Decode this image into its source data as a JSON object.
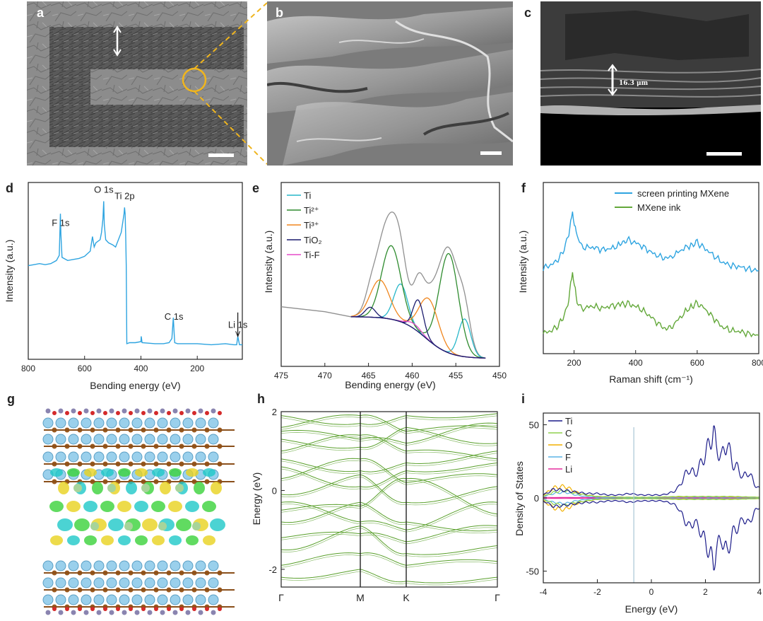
{
  "panel_labels": {
    "a": "a",
    "b": "b",
    "c": "c",
    "d": "d",
    "e": "e",
    "f": "f",
    "g": "g",
    "h": "h",
    "i": "i"
  },
  "sem": {
    "c_thickness": "16.3 μm"
  },
  "colors": {
    "blue": "#2ea4e0",
    "green": "#63a83a",
    "navy": "#1c1c6e",
    "orange": "#f0861e",
    "magenta": "#e64bc8",
    "band": "#5aa02c"
  },
  "chart_data": [
    {
      "id": "d",
      "type": "line",
      "title": "",
      "xlabel": "Bending energy (eV)",
      "ylabel": "Intensity (a.u.)",
      "xlim": [
        800,
        40
      ],
      "xticks": [
        800,
        600,
        400,
        200
      ],
      "annotations": [
        {
          "text": "F 1s",
          "x": 685
        },
        {
          "text": "O 1s",
          "x": 532
        },
        {
          "text": "Ti 2p",
          "x": 458
        },
        {
          "text": "C 1s",
          "x": 283
        },
        {
          "text": "Li 1s",
          "x": 56
        }
      ],
      "series": [
        {
          "name": "XPS survey",
          "x": [
            800,
            780,
            760,
            740,
            720,
            700,
            690,
            686,
            684,
            680,
            660,
            640,
            620,
            600,
            580,
            572,
            566,
            560,
            545,
            540,
            535,
            532,
            530,
            525,
            515,
            500,
            490,
            470,
            460,
            458,
            456,
            454,
            452,
            450,
            440,
            420,
            400,
            399,
            396,
            350,
            320,
            300,
            290,
            285,
            283,
            280,
            270,
            200,
            150,
            100,
            70,
            60,
            56,
            50,
            40
          ],
          "y": [
            0.3,
            0.31,
            0.32,
            0.31,
            0.32,
            0.35,
            0.4,
            0.8,
            0.6,
            0.38,
            0.35,
            0.36,
            0.37,
            0.39,
            0.44,
            0.58,
            0.48,
            0.52,
            0.55,
            0.62,
            0.75,
            0.92,
            0.7,
            0.55,
            0.52,
            0.5,
            0.48,
            0.62,
            0.8,
            0.86,
            0.8,
            0.6,
            0.3,
            -0.45,
            -0.44,
            -0.44,
            -0.43,
            -0.38,
            -0.44,
            -0.45,
            -0.45,
            -0.44,
            -0.4,
            -0.2,
            -0.3,
            -0.44,
            -0.45,
            -0.45,
            -0.46,
            -0.45,
            -0.46,
            -0.46,
            -0.38,
            -0.46,
            -0.46
          ]
        }
      ]
    },
    {
      "id": "e",
      "type": "line",
      "xlabel": "Bending energy (eV)",
      "ylabel": "Intensity (a.u.)",
      "xlim": [
        475,
        450
      ],
      "xticks": [
        475,
        470,
        465,
        460,
        455,
        450
      ],
      "legend": [
        "Ti",
        "Ti²⁺",
        "Ti³⁺",
        "TiO₂",
        "Ti-F"
      ],
      "series": [
        {
          "name": "envelope",
          "color": "#909090",
          "peaks": [
            [
              454,
              0.38,
              0.7
            ],
            [
              455.8,
              1.0,
              1.1
            ],
            [
              458.1,
              0.42,
              1.1
            ],
            [
              459.3,
              0.32,
              0.6
            ],
            [
              461.3,
              0.38,
              0.8
            ],
            [
              462.4,
              0.74,
              1.1
            ],
            [
              463.7,
              0.38,
              1.1
            ],
            [
              464.8,
              0.1,
              0.6
            ]
          ]
        },
        {
          "name": "Ti",
          "color": "#27b7c9",
          "peaks": [
            [
              454,
              0.38,
              0.7
            ],
            [
              461.3,
              0.38,
              0.8
            ]
          ]
        },
        {
          "name": "Ti²⁺",
          "color": "#2e8b2e",
          "peaks": [
            [
              455.8,
              1.0,
              1.1
            ],
            [
              462.4,
              0.74,
              1.1
            ]
          ]
        },
        {
          "name": "Ti³⁺",
          "color": "#f0861e",
          "peaks": [
            [
              458.1,
              0.42,
              1.1
            ],
            [
              463.7,
              0.38,
              1.1
            ]
          ]
        },
        {
          "name": "TiO₂",
          "color": "#1c1c6e",
          "peaks": [
            [
              459.3,
              0.32,
              0.6
            ],
            [
              464.8,
              0.1,
              0.6
            ]
          ]
        },
        {
          "name": "Ti-F",
          "color": "#e64bc8",
          "peaks": [
            [
              459.8,
              0.05,
              0.8
            ]
          ]
        }
      ]
    },
    {
      "id": "f",
      "type": "line",
      "xlabel": "Raman shift (cm⁻¹)",
      "ylabel": "Intensity (a.u.)",
      "xlim": [
        100,
        800
      ],
      "xticks": [
        200,
        400,
        600,
        800
      ],
      "legend": [
        "screen printing MXene",
        "MXene ink"
      ],
      "series": [
        {
          "name": "screen printing MXene",
          "color": "#2ea4e0",
          "x": [
            100,
            120,
            140,
            160,
            180,
            195,
            210,
            230,
            260,
            290,
            320,
            350,
            370,
            390,
            420,
            450,
            480,
            500,
            520,
            550,
            580,
            600,
            620,
            650,
            680,
            710,
            740,
            770,
            800
          ],
          "y": [
            0.55,
            0.57,
            0.6,
            0.66,
            0.8,
            1.0,
            0.8,
            0.72,
            0.72,
            0.7,
            0.71,
            0.74,
            0.78,
            0.77,
            0.73,
            0.68,
            0.64,
            0.63,
            0.65,
            0.7,
            0.74,
            0.76,
            0.72,
            0.66,
            0.6,
            0.57,
            0.56,
            0.54,
            0.53
          ]
        },
        {
          "name": "MXene ink",
          "color": "#63a83a",
          "x": [
            100,
            120,
            140,
            160,
            180,
            195,
            210,
            230,
            260,
            290,
            320,
            350,
            370,
            390,
            420,
            450,
            480,
            500,
            520,
            550,
            580,
            600,
            620,
            650,
            680,
            710,
            740,
            770,
            800
          ],
          "y": [
            0.02,
            0.03,
            0.06,
            0.12,
            0.25,
            0.52,
            0.26,
            0.22,
            0.24,
            0.22,
            0.24,
            0.25,
            0.26,
            0.25,
            0.21,
            0.15,
            0.08,
            0.05,
            0.08,
            0.16,
            0.24,
            0.26,
            0.23,
            0.15,
            0.07,
            0.04,
            0.03,
            0.01,
            0.0
          ]
        }
      ]
    },
    {
      "id": "h",
      "type": "line",
      "xlabel": "",
      "ylabel": "Energy (eV)",
      "ylim": [
        -2.45,
        2
      ],
      "yticks": [
        -2,
        0,
        2
      ],
      "kpoints": [
        "Γ",
        "M",
        "K",
        "Γ"
      ],
      "series": [
        {
          "name": "bands",
          "color": "#5aa02c",
          "bands": [
            [
              1.9,
              1.7,
              1.9,
              1.95
            ],
            [
              1.6,
              1.9,
              1.5,
              1.6
            ],
            [
              1.3,
              1.1,
              1.6,
              1.2
            ],
            [
              1.0,
              1.4,
              1.0,
              0.8
            ],
            [
              0.8,
              0.5,
              0.7,
              1.0
            ],
            [
              0.3,
              0.8,
              0.2,
              0.4
            ],
            [
              -0.1,
              0.4,
              -0.3,
              0.1
            ],
            [
              -0.5,
              -0.4,
              0.3,
              -0.6
            ],
            [
              -0.8,
              -0.3,
              -0.8,
              -1.0
            ],
            [
              -1.2,
              -1.1,
              -1.3,
              -0.9
            ],
            [
              -1.5,
              -0.9,
              -1.6,
              -1.4
            ],
            [
              -1.9,
              -1.6,
              -1.9,
              -1.8
            ],
            [
              -2.2,
              -2.0,
              -2.3,
              -2.2
            ],
            [
              -0.3,
              -0.8,
              -1.0,
              -0.3
            ],
            [
              0.6,
              0.1,
              0.5,
              0.7
            ],
            [
              1.5,
              1.3,
              1.2,
              1.7
            ]
          ]
        }
      ]
    },
    {
      "id": "i",
      "type": "line",
      "xlabel": "Energy  (eV)",
      "ylabel": "Density of States",
      "xlim": [
        -4,
        4
      ],
      "ylim": [
        -58,
        58
      ],
      "xticks": [
        -4,
        -2,
        0,
        2,
        4
      ],
      "yticks": [
        50,
        0,
        -50
      ],
      "fermi_line": -0.65,
      "legend": [
        "Ti",
        "C",
        "O",
        "F",
        "Li"
      ],
      "series": [
        {
          "name": "Ti",
          "color": "#1c1c8a",
          "x": [
            -4,
            -3.6,
            -3.2,
            -2.8,
            -2.4,
            -2,
            -1.6,
            -1.2,
            -0.8,
            -0.4,
            0,
            0.4,
            0.8,
            1.0,
            1.2,
            1.4,
            1.6,
            1.8,
            2.0,
            2.2,
            2.3,
            2.4,
            2.6,
            2.8,
            3.0,
            3.2,
            3.4,
            3.6,
            3.8,
            4.0
          ],
          "y": [
            2,
            6,
            5,
            4,
            3,
            3,
            2,
            2,
            3,
            2,
            2,
            2,
            4,
            7,
            14,
            20,
            16,
            22,
            30,
            40,
            46,
            34,
            28,
            38,
            24,
            20,
            14,
            18,
            10,
            6
          ]
        },
        {
          "name": "C",
          "color": "#8fd14f",
          "x": [
            -4,
            -3.6,
            -3.2,
            -2.8,
            -2.4,
            -2,
            -1,
            0,
            1,
            2,
            3,
            4
          ],
          "y": [
            1,
            4,
            5,
            3,
            2,
            1,
            0.5,
            0.5,
            1,
            1,
            1,
            0.5
          ]
        },
        {
          "name": "O",
          "color": "#f2b100",
          "x": [
            -4,
            -3.6,
            -3.2,
            -2.8,
            -2.4,
            -2,
            -1,
            0,
            1,
            2,
            3,
            4
          ],
          "y": [
            2,
            7,
            8,
            4,
            2,
            1,
            0.5,
            0.5,
            0.8,
            1,
            0.8,
            0.5
          ]
        },
        {
          "name": "F",
          "color": "#5ab4e5",
          "x": [
            -4,
            -3.6,
            -3.2,
            -2.8,
            -2.4,
            -2,
            -1,
            0,
            1,
            2,
            3,
            4
          ],
          "y": [
            1,
            3,
            4,
            2,
            1,
            0.5,
            0.3,
            0.3,
            0.5,
            0.6,
            0.5,
            0.3
          ]
        },
        {
          "name": "Li",
          "color": "#e62e9e",
          "x": [
            -4,
            -2,
            0,
            2,
            4
          ],
          "y": [
            0.3,
            0.3,
            0.2,
            0.3,
            0.2
          ]
        }
      ]
    }
  ]
}
